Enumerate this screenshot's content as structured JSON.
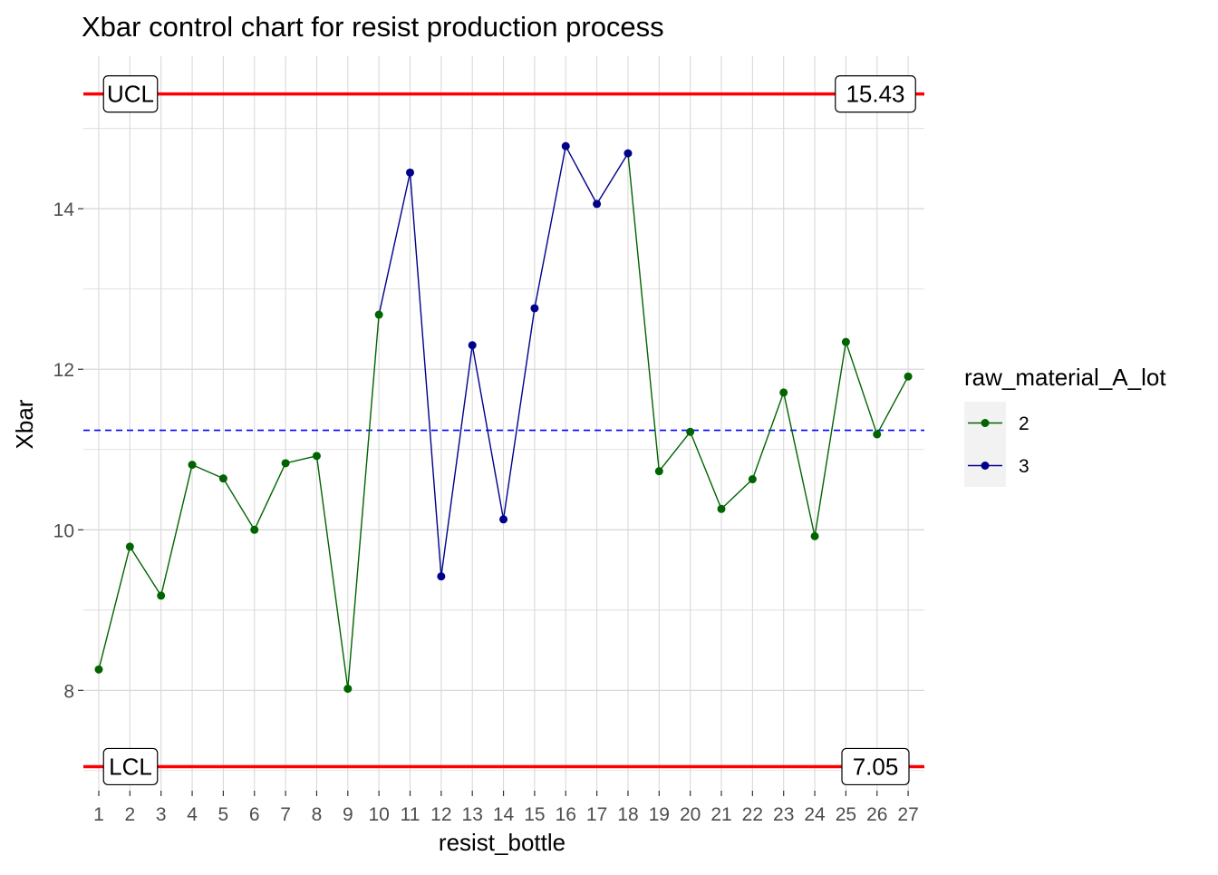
{
  "chart_data": {
    "type": "line",
    "title": "Xbar control chart for resist production process",
    "xlabel": "resist_bottle",
    "ylabel": "Xbar",
    "categories": [
      "1",
      "2",
      "3",
      "4",
      "5",
      "6",
      "7",
      "8",
      "9",
      "10",
      "11",
      "12",
      "13",
      "14",
      "15",
      "16",
      "17",
      "18",
      "19",
      "20",
      "21",
      "22",
      "23",
      "24",
      "25",
      "26",
      "27"
    ],
    "values": [
      8.26,
      9.79,
      9.18,
      10.81,
      10.64,
      10.0,
      10.83,
      10.92,
      8.02,
      12.68,
      14.45,
      9.42,
      12.3,
      10.13,
      12.76,
      14.78,
      14.06,
      14.69,
      10.73,
      11.22,
      10.26,
      10.63,
      11.71,
      9.92,
      12.34,
      11.19,
      11.91
    ],
    "lot": [
      "2",
      "2",
      "2",
      "2",
      "2",
      "2",
      "2",
      "2",
      "2",
      "2",
      "3",
      "3",
      "3",
      "3",
      "3",
      "3",
      "3",
      "3",
      "2",
      "2",
      "2",
      "2",
      "2",
      "2",
      "2",
      "2",
      "2"
    ],
    "ylim": [
      6.75,
      15.9
    ],
    "yticks": [
      8,
      10,
      12,
      14
    ],
    "grid": true,
    "center_line": 11.24,
    "ucl": {
      "label": "UCL",
      "value": 15.43,
      "value_text": "15.43"
    },
    "lcl": {
      "label": "LCL",
      "value": 7.05,
      "value_text": "7.05"
    },
    "legend": {
      "title": "raw_material_A_lot",
      "position": "right",
      "entries": [
        {
          "name": "2",
          "color": "#006400"
        },
        {
          "name": "3",
          "color": "#00008b"
        }
      ]
    },
    "colors": {
      "limit_line": "#ff0000",
      "center_line": "#0000ff",
      "grid": "#d9d9d9",
      "legend_key_bg": "#f2f2f2"
    }
  }
}
